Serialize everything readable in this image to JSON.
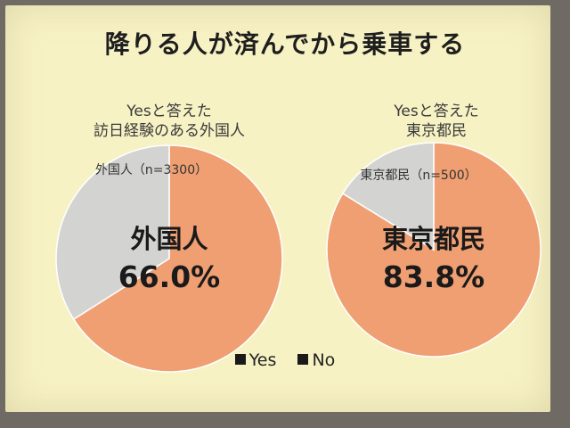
{
  "title": "降りる人が済んでから乗車する",
  "legend": [
    {
      "name": "Yes",
      "color": "#1a1a1a"
    },
    {
      "name": "No",
      "color": "#1a1a1a"
    }
  ],
  "colors": {
    "yes": "#ef9f72",
    "no": "#d3d4d2"
  },
  "chart_data": [
    {
      "type": "pie",
      "title_lines": [
        "Yesと答えた",
        "訪日経験のある外国人"
      ],
      "sample_label": "外国人（n=3300）",
      "center_label": "外国人",
      "center_value": "66.0%",
      "slices": [
        {
          "name": "Yes",
          "value": 66.0
        },
        {
          "name": "No",
          "value": 34.0
        }
      ]
    },
    {
      "type": "pie",
      "title_lines": [
        "Yesと答えた",
        "東京都民"
      ],
      "sample_label": "東京都民（n=500）",
      "center_label": "東京都民",
      "center_value": "83.8%",
      "slices": [
        {
          "name": "Yes",
          "value": 83.8
        },
        {
          "name": "No",
          "value": 16.2
        }
      ]
    }
  ]
}
